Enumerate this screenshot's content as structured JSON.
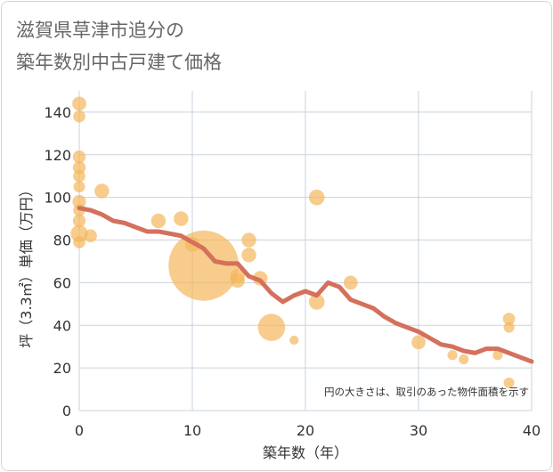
{
  "title": {
    "line1": "滋賀県草津市追分の",
    "line2": "築年数別中古戸建て価格"
  },
  "chart_data": {
    "type": "scatter",
    "title": "滋賀県草津市追分の築年数別中古戸建て価格",
    "xlabel": "築年数（年）",
    "ylabel": "坪（3.3㎡）単価（万円）",
    "xlim": [
      0,
      40
    ],
    "ylim": [
      0,
      150
    ],
    "xticks": [
      0,
      10,
      20,
      30,
      40
    ],
    "yticks": [
      0,
      20,
      40,
      60,
      80,
      100,
      120,
      140
    ],
    "grid": true,
    "note": "円の大きさは、取引のあった物件面積を示す",
    "colors": {
      "bubble": "#f5b65b",
      "line": "#d4705c",
      "grid": "#c9d3dc"
    },
    "bubbles": [
      {
        "x": 0,
        "y": 144,
        "size": 1.2
      },
      {
        "x": 0,
        "y": 138,
        "size": 0.9
      },
      {
        "x": 0,
        "y": 119,
        "size": 1.0
      },
      {
        "x": 0,
        "y": 114,
        "size": 1.0
      },
      {
        "x": 0,
        "y": 110,
        "size": 0.9
      },
      {
        "x": 0,
        "y": 105,
        "size": 0.8
      },
      {
        "x": 0,
        "y": 98,
        "size": 1.1
      },
      {
        "x": 0,
        "y": 94,
        "size": 0.9
      },
      {
        "x": 0,
        "y": 89,
        "size": 1.0
      },
      {
        "x": 0,
        "y": 83,
        "size": 1.8
      },
      {
        "x": 0,
        "y": 79,
        "size": 0.9
      },
      {
        "x": 1,
        "y": 82,
        "size": 1.0
      },
      {
        "x": 2,
        "y": 103,
        "size": 1.3
      },
      {
        "x": 7,
        "y": 89,
        "size": 1.3
      },
      {
        "x": 9,
        "y": 90,
        "size": 1.3
      },
      {
        "x": 10,
        "y": 78,
        "size": 1.3
      },
      {
        "x": 11,
        "y": 68,
        "size": 30
      },
      {
        "x": 14,
        "y": 63,
        "size": 1.3
      },
      {
        "x": 14,
        "y": 61,
        "size": 1.3
      },
      {
        "x": 15,
        "y": 80,
        "size": 1.3
      },
      {
        "x": 15,
        "y": 73,
        "size": 1.3
      },
      {
        "x": 16,
        "y": 62,
        "size": 1.3
      },
      {
        "x": 17,
        "y": 39,
        "size": 4.5
      },
      {
        "x": 19,
        "y": 33,
        "size": 0.5
      },
      {
        "x": 21,
        "y": 100,
        "size": 1.5
      },
      {
        "x": 21,
        "y": 51,
        "size": 1.5
      },
      {
        "x": 24,
        "y": 60,
        "size": 1.2
      },
      {
        "x": 30,
        "y": 32,
        "size": 1.2
      },
      {
        "x": 33,
        "y": 26,
        "size": 0.6
      },
      {
        "x": 34,
        "y": 24,
        "size": 0.6
      },
      {
        "x": 37,
        "y": 26,
        "size": 0.6
      },
      {
        "x": 38,
        "y": 43,
        "size": 0.9
      },
      {
        "x": 38,
        "y": 39,
        "size": 0.7
      },
      {
        "x": 38,
        "y": 13,
        "size": 0.7
      }
    ],
    "trend": {
      "x": [
        0,
        1,
        2,
        3,
        4,
        5,
        6,
        7,
        8,
        9,
        10,
        11,
        12,
        13,
        14,
        15,
        16,
        17,
        18,
        19,
        20,
        21,
        22,
        23,
        24,
        25,
        26,
        27,
        28,
        29,
        30,
        31,
        32,
        33,
        34,
        35,
        36,
        37,
        38,
        39,
        40
      ],
      "y": [
        95,
        94,
        92,
        89,
        88,
        86,
        84,
        84,
        83,
        82,
        79,
        76,
        70,
        69,
        69,
        63,
        61,
        55,
        51,
        54,
        56,
        54,
        60,
        58,
        52,
        50,
        48,
        44,
        41,
        39,
        37,
        34,
        31,
        30,
        28,
        27,
        29,
        29,
        27,
        25,
        23
      ]
    }
  }
}
